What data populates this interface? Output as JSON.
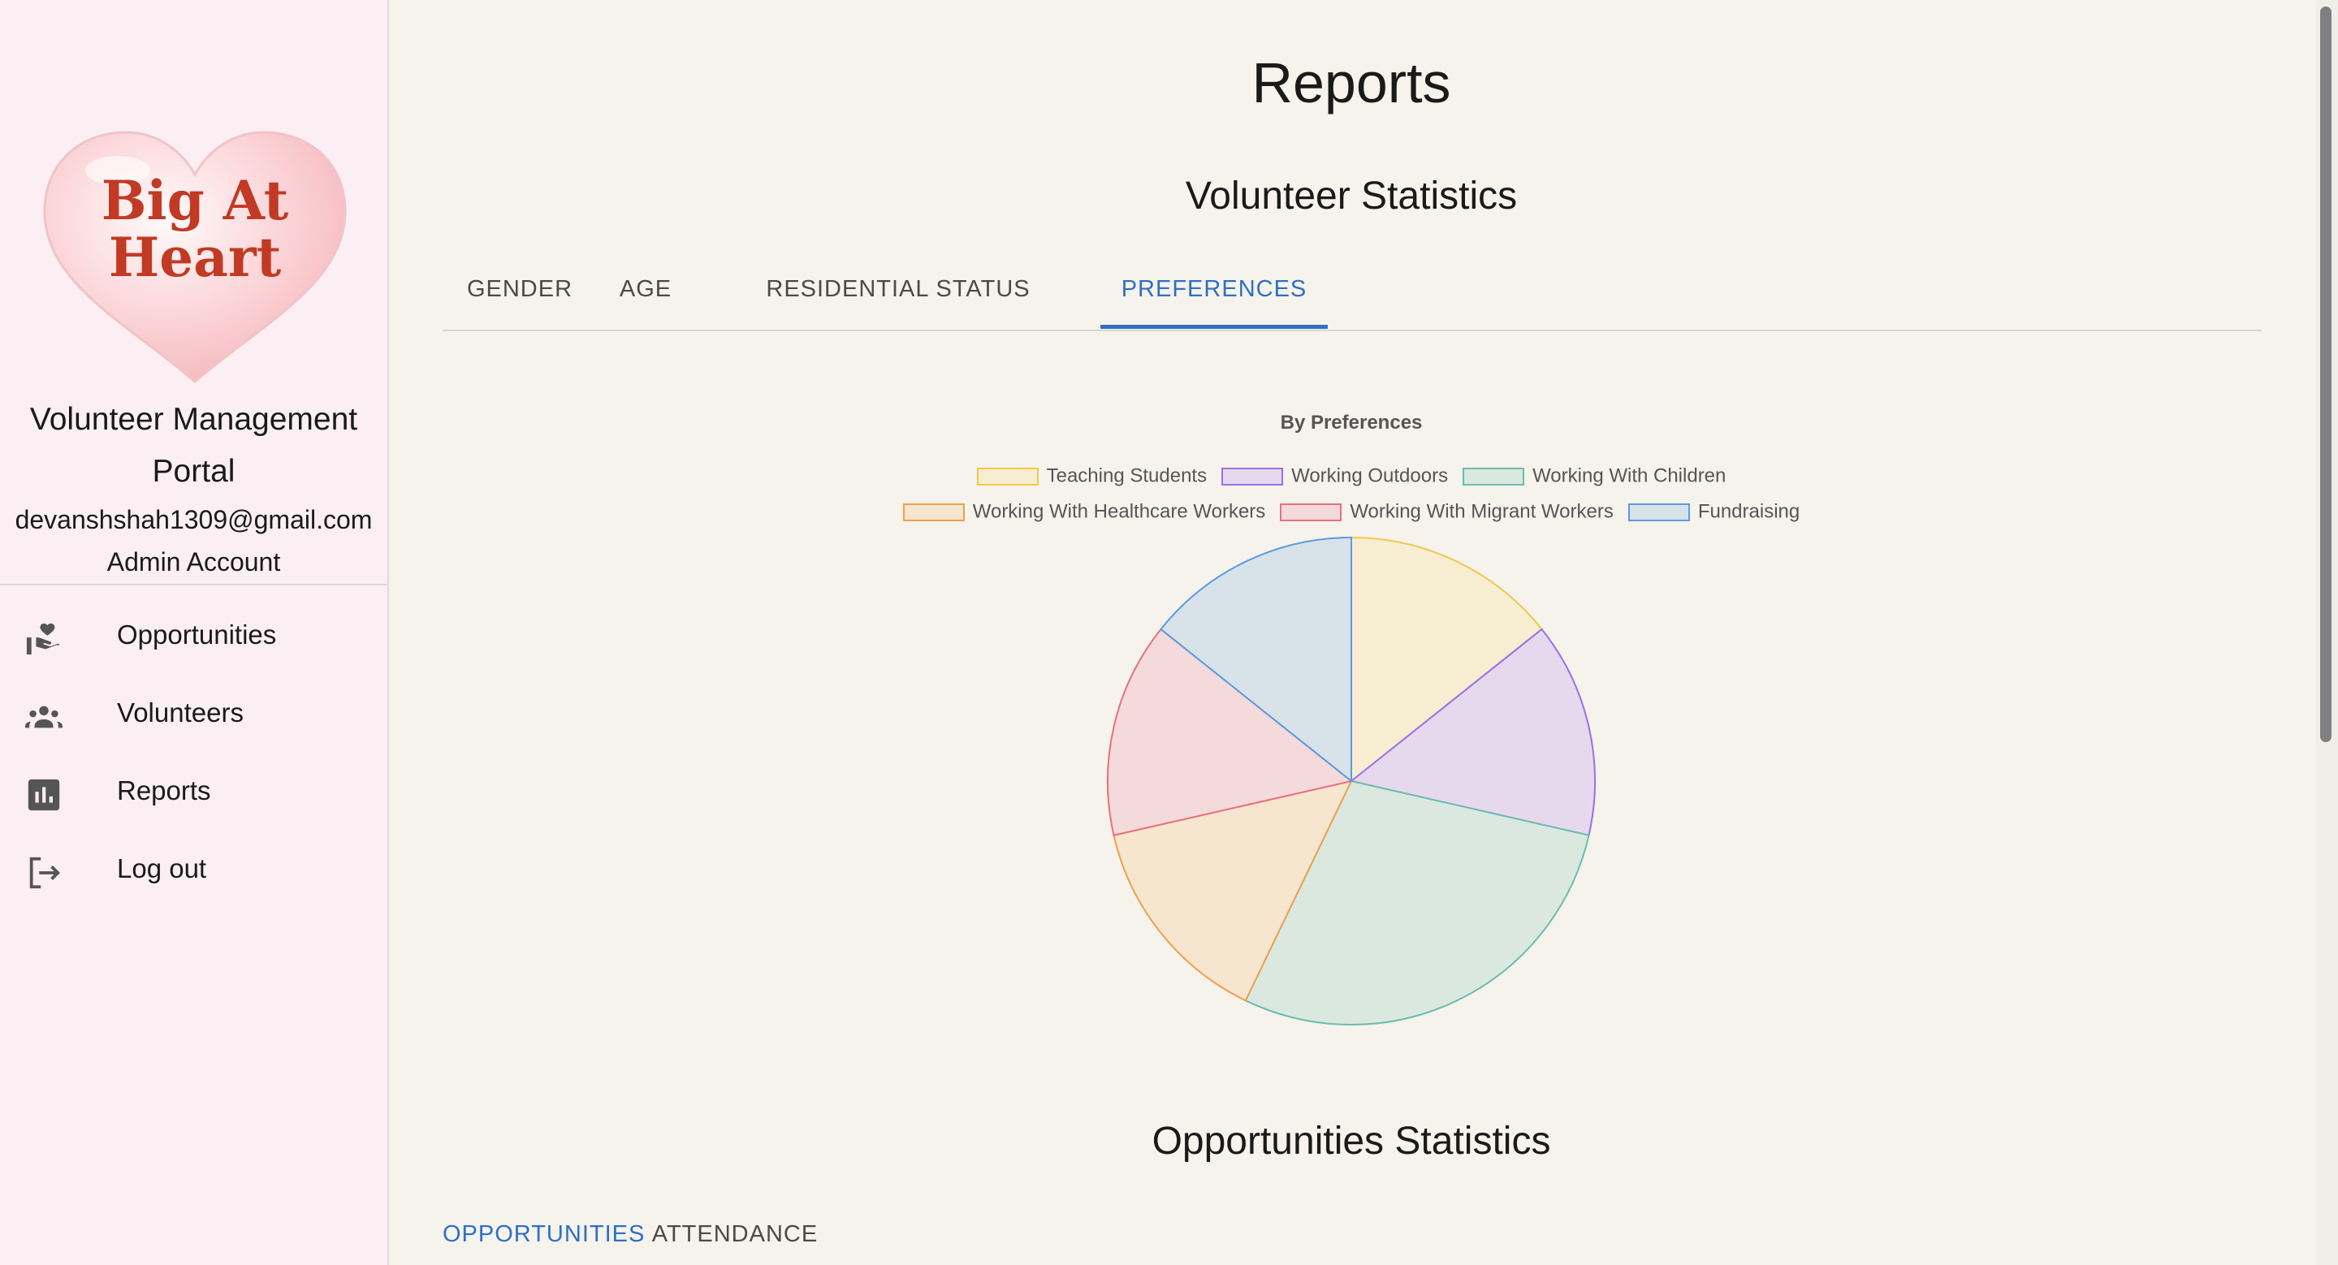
{
  "sidebar": {
    "logo_text": [
      "Big At",
      "Heart"
    ],
    "portal_title_line1": "Volunteer Management",
    "portal_title_line2": "Portal",
    "user_email": "devanshshah1309@gmail.com",
    "user_role": "Admin Account",
    "nav": [
      {
        "label": "Opportunities",
        "icon": "hand-heart-icon"
      },
      {
        "label": "Volunteers",
        "icon": "group-icon"
      },
      {
        "label": "Reports",
        "icon": "bar-chart-icon"
      },
      {
        "label": "Log out",
        "icon": "logout-icon"
      }
    ]
  },
  "main": {
    "page_title": "Reports",
    "volunteer_section": {
      "heading": "Volunteer Statistics",
      "tabs": [
        "GENDER",
        "AGE",
        "RESIDENTIAL STATUS",
        "PREFERENCES"
      ],
      "active_tab": "PREFERENCES"
    },
    "opportunities_section": {
      "heading": "Opportunities Statistics",
      "tabs": [
        "OPPORTUNITIES",
        "ATTENDANCE"
      ],
      "active_tab": "OPPORTUNITIES"
    }
  },
  "colors": {
    "accent": "#2f6fc4",
    "sidebar_bg": "#fbeff3",
    "page_bg": "#f5f3ec"
  },
  "chart_data": {
    "type": "pie",
    "title": "By Preferences",
    "legend_placement": "top",
    "categories": [
      "Teaching Students",
      "Working Outdoors",
      "Working With Children",
      "Working With Healthcare Workers",
      "Working With Migrant Workers",
      "Fundraising"
    ],
    "values": [
      1,
      1,
      2,
      1,
      1,
      1
    ],
    "border_colors": [
      "#f2c84b",
      "#9b6ee8",
      "#6cbcb0",
      "#f0a04b",
      "#e8707e",
      "#5b9be0"
    ],
    "fill_colors": [
      "#f7eed2",
      "#e6d9ee",
      "#dbe8e0",
      "#f6e5cf",
      "#f5dadb",
      "#d8e2e9"
    ]
  }
}
